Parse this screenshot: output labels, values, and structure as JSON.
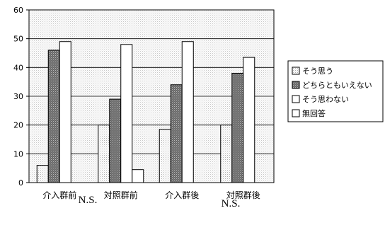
{
  "chart_data": {
    "type": "bar",
    "categories": [
      "介入群前",
      "対照群前",
      "介入群後",
      "対照群後"
    ],
    "series": [
      {
        "name": "そう思う",
        "values": [
          6,
          20,
          18.5,
          20
        ],
        "color": "#f2f2f2",
        "pattern": "dots"
      },
      {
        "name": "どちらともいえない",
        "values": [
          46,
          29,
          34,
          38
        ],
        "color": "#7f7f7f",
        "pattern": "dark"
      },
      {
        "name": "そう思わない",
        "values": [
          49,
          48,
          49,
          43.5
        ],
        "color": "#ffffff",
        "pattern": "none"
      },
      {
        "name": "無回答",
        "values": [
          0,
          4.5,
          0,
          0
        ],
        "color": "#ffffff",
        "pattern": "none"
      }
    ],
    "yticks": [
      0,
      10,
      20,
      30,
      40,
      50,
      60
    ],
    "ylim": [
      0,
      60
    ],
    "grid": true,
    "legend_position": "right",
    "annotations": [
      "N.S.",
      "N.S."
    ]
  }
}
